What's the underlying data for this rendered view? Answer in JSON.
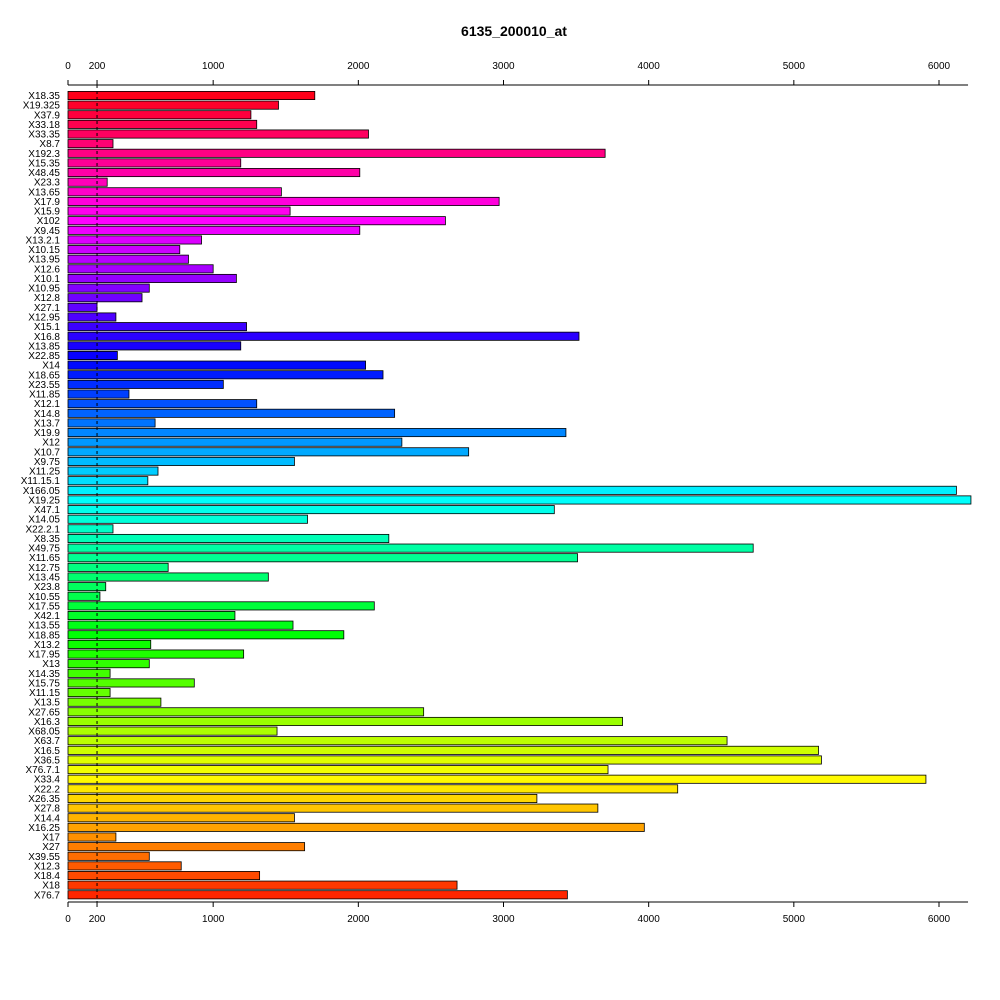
{
  "chart_data": {
    "type": "bar",
    "orientation": "horizontal",
    "title": "6135_200010_at",
    "xlabel": "",
    "ylabel": "",
    "xlim": [
      0,
      6200
    ],
    "xticks": [
      0,
      200,
      1000,
      2000,
      3000,
      4000,
      5000,
      6000
    ],
    "reference_line": 200,
    "axes": "top-and-bottom",
    "grid": false,
    "legend": "none",
    "colors": "rainbow",
    "categories": [
      "X18.35",
      "X19.325",
      "X37.9",
      "X33.18",
      "X33.35",
      "X8.7",
      "X192.3",
      "X15.35",
      "X48.45",
      "X23.3",
      "X13.65",
      "X17.9",
      "X15.9",
      "X102",
      "X9.45",
      "X13.2.1",
      "X10.15",
      "X13.95",
      "X12.6",
      "X10.1",
      "X10.95",
      "X12.8",
      "X27.1",
      "X12.95",
      "X15.1",
      "X16.8",
      "X13.85",
      "X22.85",
      "X14",
      "X18.65",
      "X23.55",
      "X11.85",
      "X12.1",
      "X14.8",
      "X13.7",
      "X19.9",
      "X12",
      "X10.7",
      "X9.75",
      "X11.25",
      "X11.15.1",
      "X166.05",
      "X19.25",
      "X47.1",
      "X14.05",
      "X22.2.1",
      "X8.35",
      "X49.75",
      "X11.65",
      "X12.75",
      "X13.45",
      "X23.8",
      "X10.55",
      "X17.55",
      "X42.1",
      "X13.55",
      "X18.85",
      "X13.2",
      "X17.95",
      "X13",
      "X14.35",
      "X15.75",
      "X11.15",
      "X13.5",
      "X27.65",
      "X16.3",
      "X68.05",
      "X63.7",
      "X16.5",
      "X36.5",
      "X76.7.1",
      "X33.4",
      "X22.2",
      "X26.35",
      "X27.8",
      "X14.4",
      "X16.25",
      "X17",
      "X27",
      "X39.55",
      "X12.3",
      "X18.4",
      "X18",
      "X76.7"
    ],
    "values": [
      1700,
      1450,
      1260,
      1300,
      2070,
      310,
      3700,
      1190,
      2010,
      270,
      1470,
      2970,
      1530,
      2600,
      2010,
      920,
      770,
      830,
      1000,
      1160,
      560,
      510,
      200,
      330,
      1230,
      3520,
      1190,
      340,
      2050,
      2170,
      1070,
      420,
      1300,
      2250,
      600,
      3430,
      2300,
      2760,
      1560,
      620,
      550,
      6120,
      6220,
      3350,
      1650,
      310,
      2210,
      4720,
      3510,
      690,
      1380,
      260,
      220,
      2110,
      1150,
      1550,
      1900,
      570,
      1210,
      560,
      290,
      870,
      290,
      640,
      2450,
      3820,
      1440,
      4540,
      5170,
      5190,
      3720,
      5910,
      4200,
      3230,
      3650,
      1560,
      3970,
      330,
      1630,
      560,
      780,
      1320,
      2680,
      3440
    ]
  }
}
